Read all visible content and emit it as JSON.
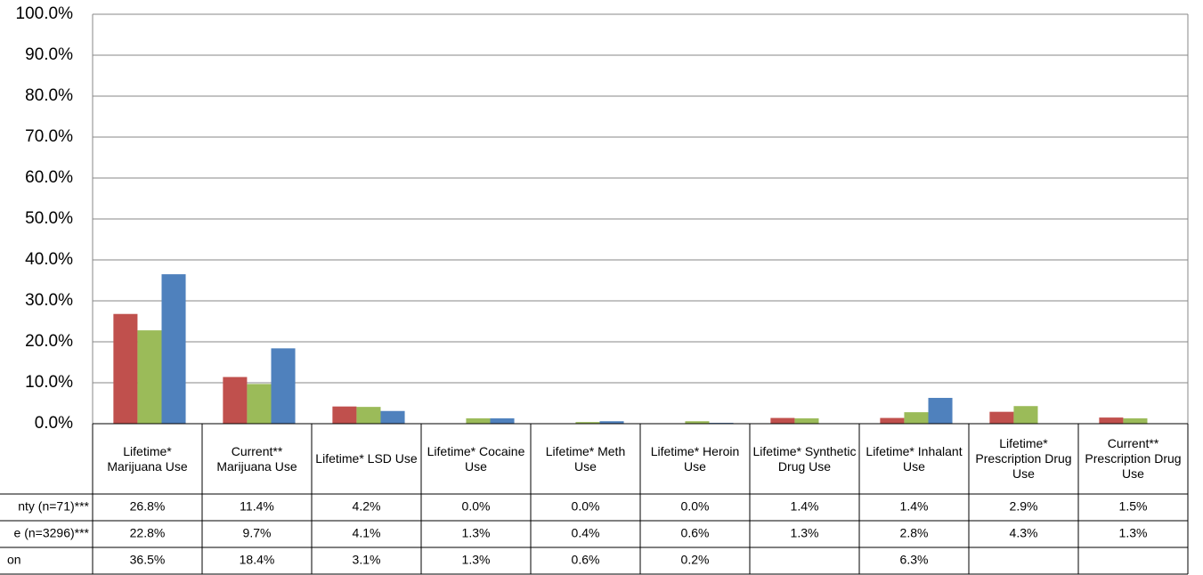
{
  "chart_data": {
    "type": "bar",
    "categories": [
      "Lifetime* Marijuana Use",
      "Current** Marijuana Use",
      "Lifetime* LSD Use",
      "Lifetime* Cocaine Use",
      "Lifetime* Meth Use",
      "Lifetime* Heroin Use",
      "Lifetime* Synthetic Drug Use",
      "Lifetime* Inhalant Use",
      "Lifetime* Prescription Drug Use",
      "Current** Prescription Drug Use"
    ],
    "series": [
      {
        "name": "nty (n=71)***",
        "color": "#c0504d",
        "values": [
          26.8,
          11.4,
          4.2,
          0.0,
          0.0,
          0.0,
          1.4,
          1.4,
          2.9,
          1.5
        ],
        "value_labels": [
          "26.8%",
          "11.4%",
          "4.2%",
          "0.0%",
          "0.0%",
          "0.0%",
          "1.4%",
          "1.4%",
          "2.9%",
          "1.5%"
        ]
      },
      {
        "name": "e (n=3296)***",
        "color": "#9bbb59",
        "values": [
          22.8,
          9.7,
          4.1,
          1.3,
          0.4,
          0.6,
          1.3,
          2.8,
          4.3,
          1.3
        ],
        "value_labels": [
          "22.8%",
          "9.7%",
          "4.1%",
          "1.3%",
          "0.4%",
          "0.6%",
          "1.3%",
          "2.8%",
          "4.3%",
          "1.3%"
        ]
      },
      {
        "name": "on",
        "color": "#4f81bd",
        "values": [
          36.5,
          18.4,
          3.1,
          1.3,
          0.6,
          0.2,
          null,
          6.3,
          null,
          null
        ],
        "value_labels": [
          "36.5%",
          "18.4%",
          "3.1%",
          "1.3%",
          "0.6%",
          "0.2%",
          null,
          "6.3%",
          null,
          null
        ]
      }
    ],
    "ylim": [
      0,
      100
    ],
    "yticks": [
      {
        "value": 0,
        "label": "0.0%"
      },
      {
        "value": 10,
        "label": "10.0%"
      },
      {
        "value": 20,
        "label": "20.0%"
      },
      {
        "value": 30,
        "label": "30.0%"
      },
      {
        "value": 40,
        "label": "40.0%"
      },
      {
        "value": 50,
        "label": "50.0%"
      },
      {
        "value": 60,
        "label": "60.0%"
      },
      {
        "value": 70,
        "label": "70.0%"
      },
      {
        "value": 80,
        "label": "80.0%"
      },
      {
        "value": 90,
        "label": "90.0%"
      },
      {
        "value": 100,
        "label": "100.0%"
      }
    ],
    "grid": true
  }
}
